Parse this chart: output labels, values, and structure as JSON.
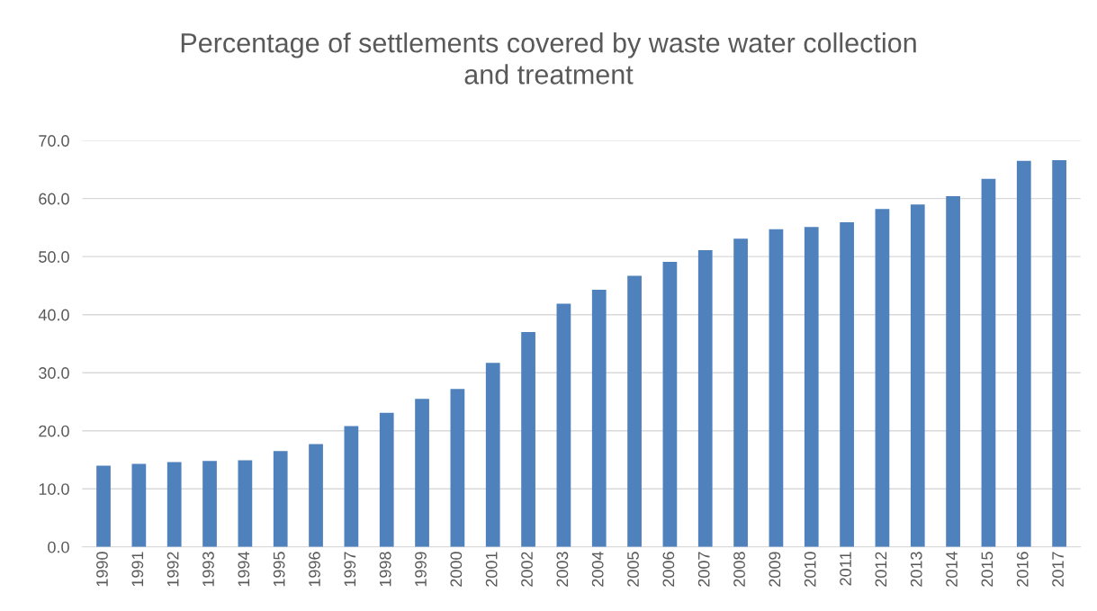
{
  "chart_data": {
    "type": "bar",
    "title": "Percentage of settlements covered by waste water collection\nand treatment",
    "categories": [
      "1990",
      "1991",
      "1992",
      "1993",
      "1994",
      "1995",
      "1996",
      "1997",
      "1998",
      "1999",
      "2000",
      "2001",
      "2002",
      "2003",
      "2004",
      "2005",
      "2006",
      "2007",
      "2008",
      "2009",
      "2010",
      "2011",
      "2012",
      "2013",
      "2014",
      "2015",
      "2016",
      "2017"
    ],
    "values": [
      14.0,
      14.3,
      14.6,
      14.8,
      14.9,
      16.5,
      17.7,
      20.8,
      23.1,
      25.5,
      27.2,
      31.7,
      37.0,
      41.9,
      44.3,
      46.7,
      49.1,
      51.1,
      53.1,
      54.7,
      55.1,
      55.9,
      58.2,
      59.0,
      60.4,
      63.4,
      66.5,
      66.6
    ],
    "color": "#4f81bd",
    "ylim": [
      0,
      70
    ],
    "yticks": [
      {
        "value": 0,
        "label": "0.0"
      },
      {
        "value": 10,
        "label": "10.0"
      },
      {
        "value": 20,
        "label": "20.0"
      },
      {
        "value": 30,
        "label": "30.0"
      },
      {
        "value": 40,
        "label": "40.0"
      },
      {
        "value": 50,
        "label": "50.0"
      },
      {
        "value": 60,
        "label": "60.0"
      },
      {
        "value": 70,
        "label": "70.0"
      }
    ],
    "grid": "y"
  }
}
